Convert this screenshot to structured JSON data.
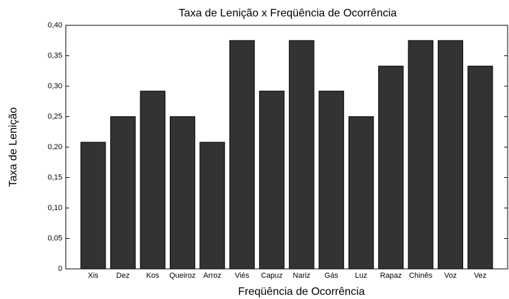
{
  "chart_data": {
    "type": "bar",
    "title": "Taxa de Lenição x Freqüência de Ocorrência",
    "x_label": "Freqüência de Ocorrência",
    "y_label": "Taxa de Lenição",
    "categories": [
      "Xis",
      "Dez",
      "Kos",
      "Queiroz",
      "Arroz",
      "Viés",
      "Capuz",
      "Nariz",
      "Gás",
      "Luz",
      "Rapaz",
      "Chinês",
      "Voz",
      "Vez"
    ],
    "values": [
      0.208,
      0.25,
      0.292,
      0.25,
      0.208,
      0.375,
      0.292,
      0.375,
      0.292,
      0.25,
      0.333,
      0.375,
      0.375,
      0.333
    ],
    "color": "#333333",
    "ylim": [
      0,
      0.4
    ],
    "yticks": [
      0,
      {
        "value": 0.05,
        "label": "0,05"
      },
      {
        "value": 0.1,
        "label": "0,10"
      },
      {
        "value": 0.15,
        "label": "0,15"
      },
      {
        "value": 0.2,
        "label": "0,20"
      },
      {
        "value": 0.25,
        "label": "0,25"
      },
      {
        "value": 0.3,
        "label": "0,30"
      },
      {
        "value": 0.35,
        "label": "0,35"
      },
      {
        "value": 0.4,
        "label": "0,40"
      }
    ],
    "grid": false
  }
}
